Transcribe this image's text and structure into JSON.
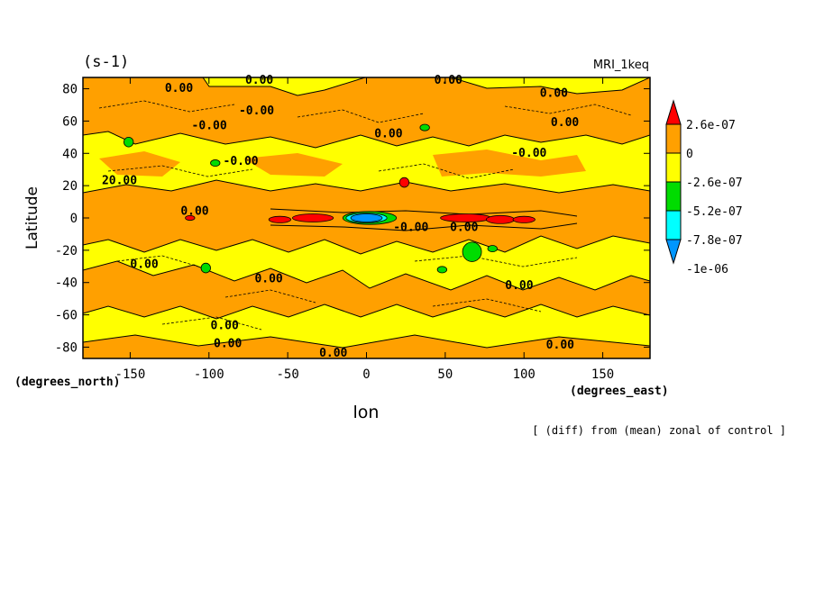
{
  "chart_data": {
    "type": "heatmap",
    "unit_label": "(s-1)",
    "model_label": "MRI_1keq",
    "xlabel": "lon",
    "ylabel": "Latitude",
    "x_units": "(degrees_east)",
    "y_units": "(degrees_north)",
    "footnote": "[ (diff) from (mean) zonal of control ]",
    "xlim": [
      -180,
      180
    ],
    "ylim": [
      -87,
      87
    ],
    "x_ticks": [
      -150,
      -100,
      -50,
      0,
      50,
      100,
      150
    ],
    "x_tick_labels": [
      "-150",
      "-100",
      "-50",
      "0",
      "50",
      "100",
      "150"
    ],
    "y_ticks": [
      -80,
      -60,
      -40,
      -20,
      0,
      20,
      40,
      60,
      80
    ],
    "y_tick_labels": [
      "-80",
      "-60",
      "-40",
      "-20",
      "0",
      "20",
      "40",
      "60",
      "80"
    ],
    "colorbar": {
      "levels": [
        {
          "label": "2.6e-07",
          "color": "#ff0000"
        },
        {
          "label": "0",
          "color": "#ffa000"
        },
        {
          "label": "-2.6e-07",
          "color": "#ffff00"
        },
        {
          "label": "-5.2e-07",
          "color": "#00dc00"
        },
        {
          "label": "-7.8e-07",
          "color": "#00ffff"
        },
        {
          "label": "-1e-06",
          "color": "#0096ff"
        }
      ],
      "extends": "both"
    },
    "contour_labels": [
      {
        "text": "0.00",
        "lon": -128,
        "lat": 78
      },
      {
        "text": "0.00",
        "lon": -77,
        "lat": 83
      },
      {
        "text": "-0.00",
        "lon": -81,
        "lat": 64
      },
      {
        "text": "0.00",
        "lon": 43,
        "lat": 83
      },
      {
        "text": "0.00",
        "lon": 110,
        "lat": 75
      },
      {
        "text": "0.00",
        "lon": 117,
        "lat": 57
      },
      {
        "text": "-0.00",
        "lon": -111,
        "lat": 55
      },
      {
        "text": "0.00",
        "lon": 5,
        "lat": 50
      },
      {
        "text": "-0.00",
        "lon": -91,
        "lat": 33
      },
      {
        "text": "-0.00",
        "lon": 92,
        "lat": 38
      },
      {
        "text": "20.00",
        "lon": -168,
        "lat": 21
      },
      {
        "text": "0.00",
        "lon": -118,
        "lat": 2
      },
      {
        "text": "-0.00",
        "lon": 17,
        "lat": -8
      },
      {
        "text": "0.00",
        "lon": 53,
        "lat": -8
      },
      {
        "text": "0.00",
        "lon": -150,
        "lat": -31
      },
      {
        "text": "0.00",
        "lon": -71,
        "lat": -40
      },
      {
        "text": "0.00",
        "lon": -99,
        "lat": -69
      },
      {
        "text": "0.00",
        "lon": -97,
        "lat": -80
      },
      {
        "text": "0.00",
        "lon": 88,
        "lat": -44
      },
      {
        "text": "0.00",
        "lon": 114,
        "lat": -81
      },
      {
        "text": "0.00",
        "lon": -30,
        "lat": -86
      }
    ],
    "regions": [
      {
        "level": "2.6e-07",
        "lon": -34,
        "lat": 0,
        "rlon": 13,
        "rlat": 2.5
      },
      {
        "level": "2.6e-07",
        "lon": -55,
        "lat": -1,
        "rlon": 7,
        "rlat": 2
      },
      {
        "level": "2.6e-07",
        "lon": 63,
        "lat": 0,
        "rlon": 16,
        "rlat": 2.5
      },
      {
        "level": "2.6e-07",
        "lon": 85,
        "lat": -1,
        "rlon": 9,
        "rlat": 2.5
      },
      {
        "level": "2.6e-07",
        "lon": 100,
        "lat": -1,
        "rlon": 7,
        "rlat": 2
      },
      {
        "level": "2.6e-07",
        "lon": 24,
        "lat": 22,
        "rlon": 3,
        "rlat": 3
      },
      {
        "level": "2.6e-07",
        "lon": -112,
        "lat": 0,
        "rlon": 3,
        "rlat": 1.5
      },
      {
        "level": "-5.2e-07",
        "lon": 2,
        "lat": 0,
        "rlon": 17,
        "rlat": 4
      },
      {
        "level": "-7.8e-07",
        "lon": 0,
        "lat": 0,
        "rlon": 13,
        "rlat": 3
      },
      {
        "level": "-1e-06",
        "lon": 0,
        "lat": 0,
        "rlon": 10,
        "rlat": 2.5
      },
      {
        "level": "-5.2e-07",
        "lon": -151,
        "lat": 47,
        "rlon": 3,
        "rlat": 3
      },
      {
        "level": "-5.2e-07",
        "lon": -96,
        "lat": 34,
        "rlon": 3,
        "rlat": 2
      },
      {
        "level": "-5.2e-07",
        "lon": 67,
        "lat": -21,
        "rlon": 6,
        "rlat": 6
      },
      {
        "level": "-5.2e-07",
        "lon": 80,
        "lat": -19,
        "rlon": 3,
        "rlat": 2
      },
      {
        "level": "-5.2e-07",
        "lon": 48,
        "lat": -32,
        "rlon": 3,
        "rlat": 2
      },
      {
        "level": "-5.2e-07",
        "lon": -102,
        "lat": -31,
        "rlon": 3,
        "rlat": 3
      },
      {
        "level": "-5.2e-07",
        "lon": 37,
        "lat": 56,
        "rlon": 3,
        "rlat": 2
      }
    ]
  }
}
